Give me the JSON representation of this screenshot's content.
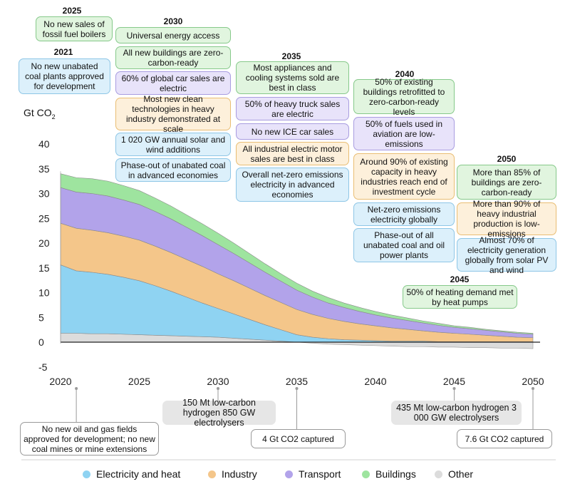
{
  "chart_data": {
    "type": "area",
    "stacked": true,
    "ylabel": "Gt CO2",
    "ylim": [
      -5,
      40
    ],
    "yticks": [
      -5,
      0,
      5,
      10,
      15,
      20,
      25,
      30,
      35,
      40
    ],
    "xlim": [
      2020,
      2050
    ],
    "xticks": [
      2020,
      2025,
      2030,
      2035,
      2040,
      2045,
      2050
    ],
    "x": [
      2020,
      2021,
      2022,
      2023,
      2024,
      2025,
      2026,
      2027,
      2028,
      2029,
      2030,
      2031,
      2032,
      2033,
      2034,
      2035,
      2036,
      2037,
      2038,
      2039,
      2040,
      2041,
      2042,
      2043,
      2044,
      2045,
      2046,
      2047,
      2048,
      2049,
      2050
    ],
    "series": [
      {
        "name": "Other",
        "color": "#dcdcdc",
        "values": [
          1.8,
          1.8,
          1.7,
          1.7,
          1.6,
          1.5,
          1.4,
          1.3,
          1.2,
          1.1,
          1.0,
          0.8,
          0.6,
          0.4,
          0.2,
          0.0,
          -0.2,
          -0.4,
          -0.5,
          -0.6,
          -0.7,
          -0.8,
          -0.9,
          -0.9,
          -1.0,
          -1.0,
          -1.1,
          -1.1,
          -1.2,
          -1.2,
          -1.3
        ]
      },
      {
        "name": "Electricity and heat",
        "color": "#8fd3f2",
        "values": [
          13.8,
          12.6,
          12.4,
          12.0,
          11.5,
          10.9,
          10.0,
          9.0,
          7.9,
          6.8,
          5.8,
          4.9,
          4.0,
          3.1,
          2.3,
          1.5,
          1.0,
          0.7,
          0.5,
          0.4,
          0.3,
          0.2,
          0.2,
          0.2,
          0.1,
          0.1,
          0.1,
          0.1,
          0.1,
          0.1,
          0.1
        ]
      },
      {
        "name": "Industry",
        "color": "#f4c68a",
        "values": [
          8.4,
          8.6,
          8.5,
          8.4,
          8.3,
          8.2,
          8.0,
          7.8,
          7.6,
          7.4,
          7.0,
          6.7,
          6.3,
          5.9,
          5.5,
          5.1,
          4.6,
          4.1,
          3.7,
          3.3,
          3.0,
          2.7,
          2.4,
          2.1,
          1.9,
          1.7,
          1.5,
          1.3,
          1.1,
          0.9,
          0.8
        ]
      },
      {
        "name": "Transport",
        "color": "#b2a3ea",
        "values": [
          7.2,
          7.3,
          7.4,
          7.4,
          7.3,
          7.2,
          7.0,
          6.8,
          6.5,
          6.2,
          5.9,
          5.5,
          5.1,
          4.7,
          4.3,
          3.9,
          3.5,
          3.1,
          2.8,
          2.5,
          2.2,
          2.0,
          1.8,
          1.6,
          1.4,
          1.2,
          1.1,
          1.0,
          0.9,
          0.8,
          0.7
        ]
      },
      {
        "name": "Buildings",
        "color": "#9ee49f",
        "values": [
          2.8,
          2.9,
          3.0,
          3.0,
          2.9,
          2.8,
          2.7,
          2.6,
          2.5,
          2.4,
          2.3,
          2.1,
          1.9,
          1.7,
          1.5,
          1.4,
          1.2,
          1.1,
          0.9,
          0.8,
          0.7,
          0.6,
          0.5,
          0.4,
          0.4,
          0.3,
          0.3,
          0.2,
          0.2,
          0.2,
          0.2
        ]
      }
    ]
  },
  "legend": [
    {
      "label": "Electricity and heat",
      "color": "#8fd3f2"
    },
    {
      "label": "Industry",
      "color": "#f4c68a"
    },
    {
      "label": "Transport",
      "color": "#b2a3ea"
    },
    {
      "label": "Buildings",
      "color": "#9ee49f"
    },
    {
      "label": "Other",
      "color": "#dcdcdc"
    }
  ],
  "ylabel_text": {
    "main": "Gt CO",
    "sub": "2"
  },
  "years": {
    "y2025": "2025",
    "y2030": "2030",
    "y2021": "2021",
    "y2035": "2035",
    "y2040": "2040",
    "y2050": "2050",
    "y2045": "2045"
  },
  "milestones": {
    "m2025_boilers": "No new sales of fossil fuel boilers",
    "m2021_coal": "No new unabated coal plants approved for development",
    "m2030_access": "Universal energy access",
    "m2030_buildings": "All new buildings are zero-carbon-ready",
    "m2030_cars": "60% of global car sales are electric",
    "m2030_industry": "Most new clean technologies in heavy industry demonstrated at scale",
    "m2030_solar": "1 020 GW annual solar and wind additions",
    "m2030_coal": "Phase-out of unabated coal in advanced economies",
    "m2035_appliances": "Most appliances and cooling systems sold are best in class",
    "m2035_trucks": "50% of heavy truck sales are electric",
    "m2035_ice": "No new ICE car sales",
    "m2035_motors": "All industrial electric motor sales are best in class",
    "m2035_netzero": "Overall net-zero emissions electricity in advanced economies",
    "m2040_buildings": "50% of existing buildings retrofitted to zero-carbon-ready levels",
    "m2040_aviation": "50% of fuels used in aviation are low-emissions",
    "m2040_heavy": "Around 90% of existing capacity in heavy industries reach end of investment cycle",
    "m2040_netzero": "Net-zero emissions electricity globally",
    "m2040_phaseout": "Phase-out of all unabated coal and oil power plants",
    "m2050_buildings": "More than 85% of buildings are zero-carbon-ready",
    "m2050_industry": "More than 90% of heavy industrial production is low-emissions",
    "m2050_solar": "Almost 70% of electricity generation globally from solar PV and wind",
    "m2045_heating": "50% of heating demand met by heat pumps"
  },
  "bottom": {
    "oilgas": "No new oil and gas fields approved for development; no new coal mines or mine extensions",
    "h2_2030": "150 Mt low-carbon hydrogen 850 GW electrolysers",
    "ccs_2035": "4 Gt CO2 captured",
    "h2_2045": "435 Mt low-carbon hydrogen 3 000 GW electrolysers",
    "ccs_2050": "7.6 Gt CO2 captured"
  }
}
